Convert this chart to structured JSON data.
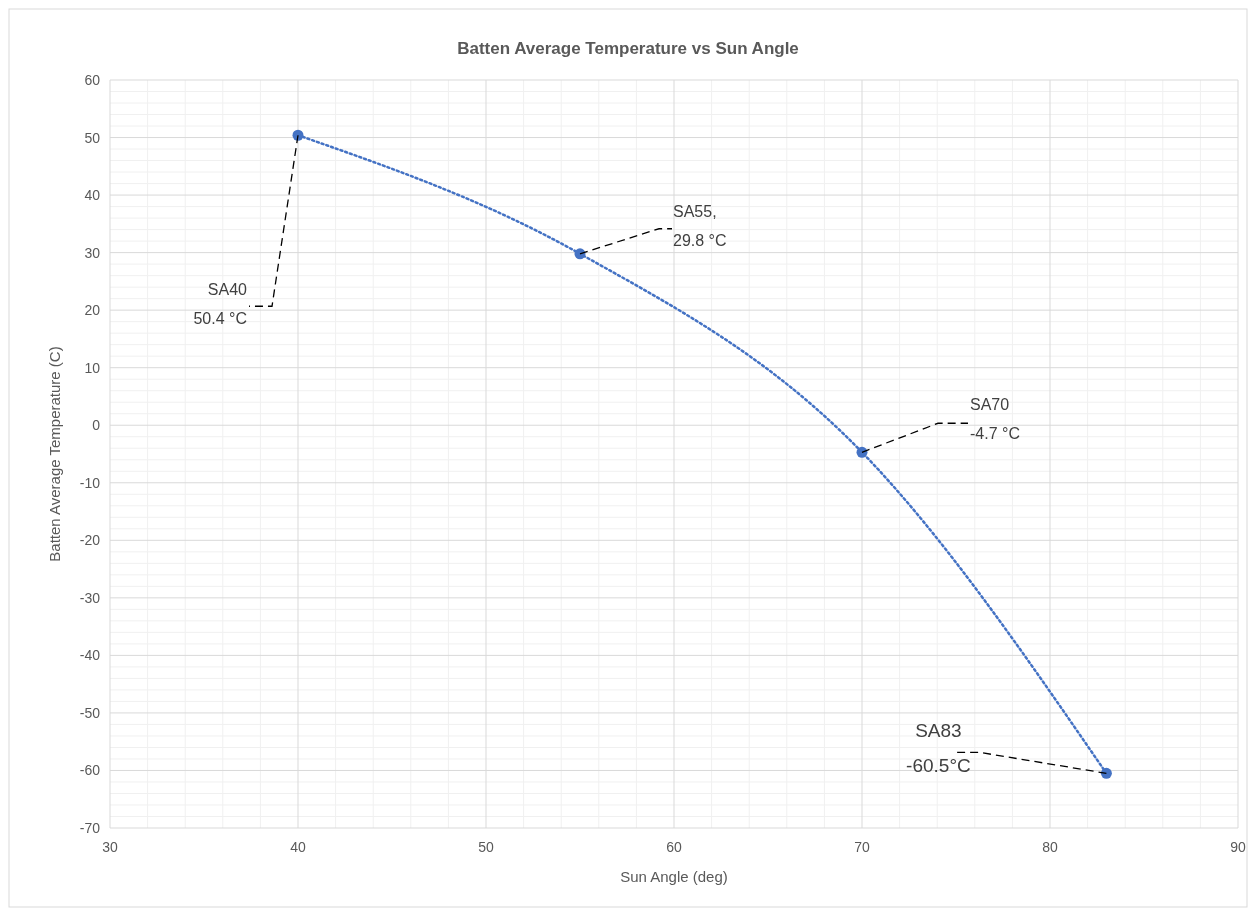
{
  "chart_data": {
    "type": "line",
    "title": "Batten Average Temperature vs Sun Angle",
    "xlabel": "Sun Angle (deg)",
    "ylabel": "Batten Average Temperature (C)",
    "x": [
      40,
      55,
      70,
      83
    ],
    "series": [
      {
        "color": "#4472c4",
        "values": [
          50.4,
          29.8,
          -4.7,
          -60.5
        ]
      }
    ],
    "xlim": [
      30,
      90
    ],
    "xticks": [
      30,
      40,
      50,
      60,
      70,
      80,
      90
    ],
    "ylim": [
      -70,
      60
    ],
    "yticks": [
      -70,
      -60,
      -50,
      -40,
      -30,
      -20,
      -10,
      0,
      10,
      20,
      30,
      40,
      50,
      60
    ],
    "grid": true,
    "marker": "circle",
    "line_style": "dotted",
    "annotations": [
      {
        "text": "SA40\n50.4 °C",
        "x": 40,
        "y": 50.4
      },
      {
        "text": "SA55,\n29.8 °C",
        "x": 55,
        "y": 29.8
      },
      {
        "text": "SA70\n-4.7 °C",
        "x": 70,
        "y": -4.7
      },
      {
        "text": "SA83\n-60.5°C",
        "x": 83,
        "y": -60.5
      }
    ]
  }
}
